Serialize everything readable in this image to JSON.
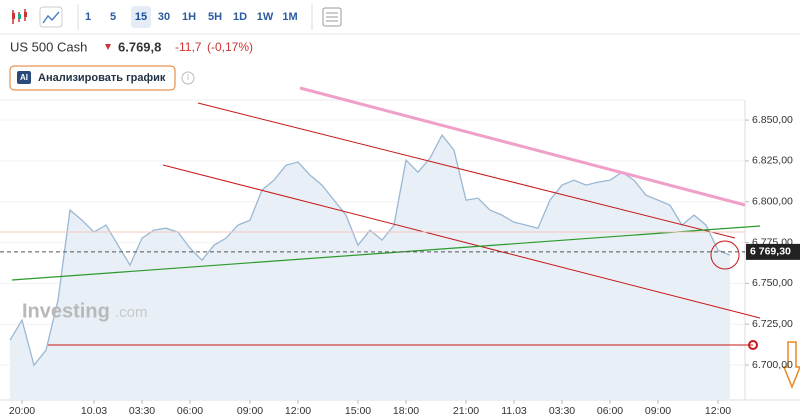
{
  "toolbar": {
    "intervals": [
      "1",
      "5",
      "15",
      "30",
      "1H",
      "5H",
      "1D",
      "1W",
      "1M"
    ],
    "active": "15"
  },
  "header": {
    "instrument": "US 500 Cash",
    "price": "6.769,8",
    "change": "-11,7",
    "change_percent": "(-0,17%)",
    "ai_badge": "AI",
    "ai_button": "Анализировать график"
  },
  "watermark": {
    "brand": "Investing",
    "suffix": ".com"
  },
  "chart_data": {
    "type": "area",
    "color": "#9ab8d4",
    "fill": "#e8eff6",
    "categories": [
      null,
      "20:00",
      null,
      null,
      null,
      null,
      null,
      "10.03",
      null,
      null,
      null,
      "03:30",
      null,
      null,
      null,
      "06:00",
      null,
      null,
      null,
      null,
      "09:00",
      null,
      null,
      null,
      "12:00",
      null,
      null,
      null,
      null,
      "15:00",
      null,
      null,
      null,
      "18:00",
      null,
      null,
      null,
      null,
      "21:00",
      null,
      null,
      null,
      "11.03",
      null,
      null,
      null,
      "03:30",
      null,
      null,
      null,
      "06:00",
      null,
      null,
      null,
      "09:00",
      null,
      null,
      null,
      null,
      "12:00",
      null
    ],
    "values": [
      6715.2,
      6727.5,
      6699.9,
      6709.1,
      6739.7,
      6794.9,
      6788.7,
      6781.4,
      6785.7,
      6773.4,
      6761.2,
      6777.7,
      6782.6,
      6783.8,
      6781.4,
      6771.6,
      6764.2,
      6773.4,
      6777.7,
      6785.7,
      6788.7,
      6807.1,
      6813.2,
      6822.4,
      6824.3,
      6816.3,
      6810.2,
      6801.0,
      6791.8,
      6773.4,
      6782.6,
      6776.5,
      6785.7,
      6825.5,
      6818.1,
      6826.7,
      6840.8,
      6831.6,
      6801.0,
      6802.2,
      6794.9,
      6791.8,
      6787.5,
      6785.7,
      6783.8,
      6801.0,
      6810.2,
      6813.2,
      6810.2,
      6812.0,
      6813.2,
      6818.1,
      6813.2,
      6804.0,
      6801.0,
      6797.9,
      6785.7,
      6791.8,
      6785.7,
      6770.3,
      6767.3
    ],
    "ylim": [
      6678.6,
      6862.3
    ],
    "yticks": [
      {
        "value": 6700,
        "label": "6.700,00"
      },
      {
        "value": 6725,
        "label": "6.725,00"
      },
      {
        "value": 6750,
        "label": "6.750,00"
      },
      {
        "value": 6775,
        "label": "6.775,00"
      },
      {
        "value": 6800,
        "label": "6.800,00"
      },
      {
        "value": 6825,
        "label": "6.825,00"
      },
      {
        "value": 6850,
        "label": "6.850,00"
      }
    ],
    "last_price": {
      "value": 6769.3,
      "label": "6 769,30"
    }
  }
}
